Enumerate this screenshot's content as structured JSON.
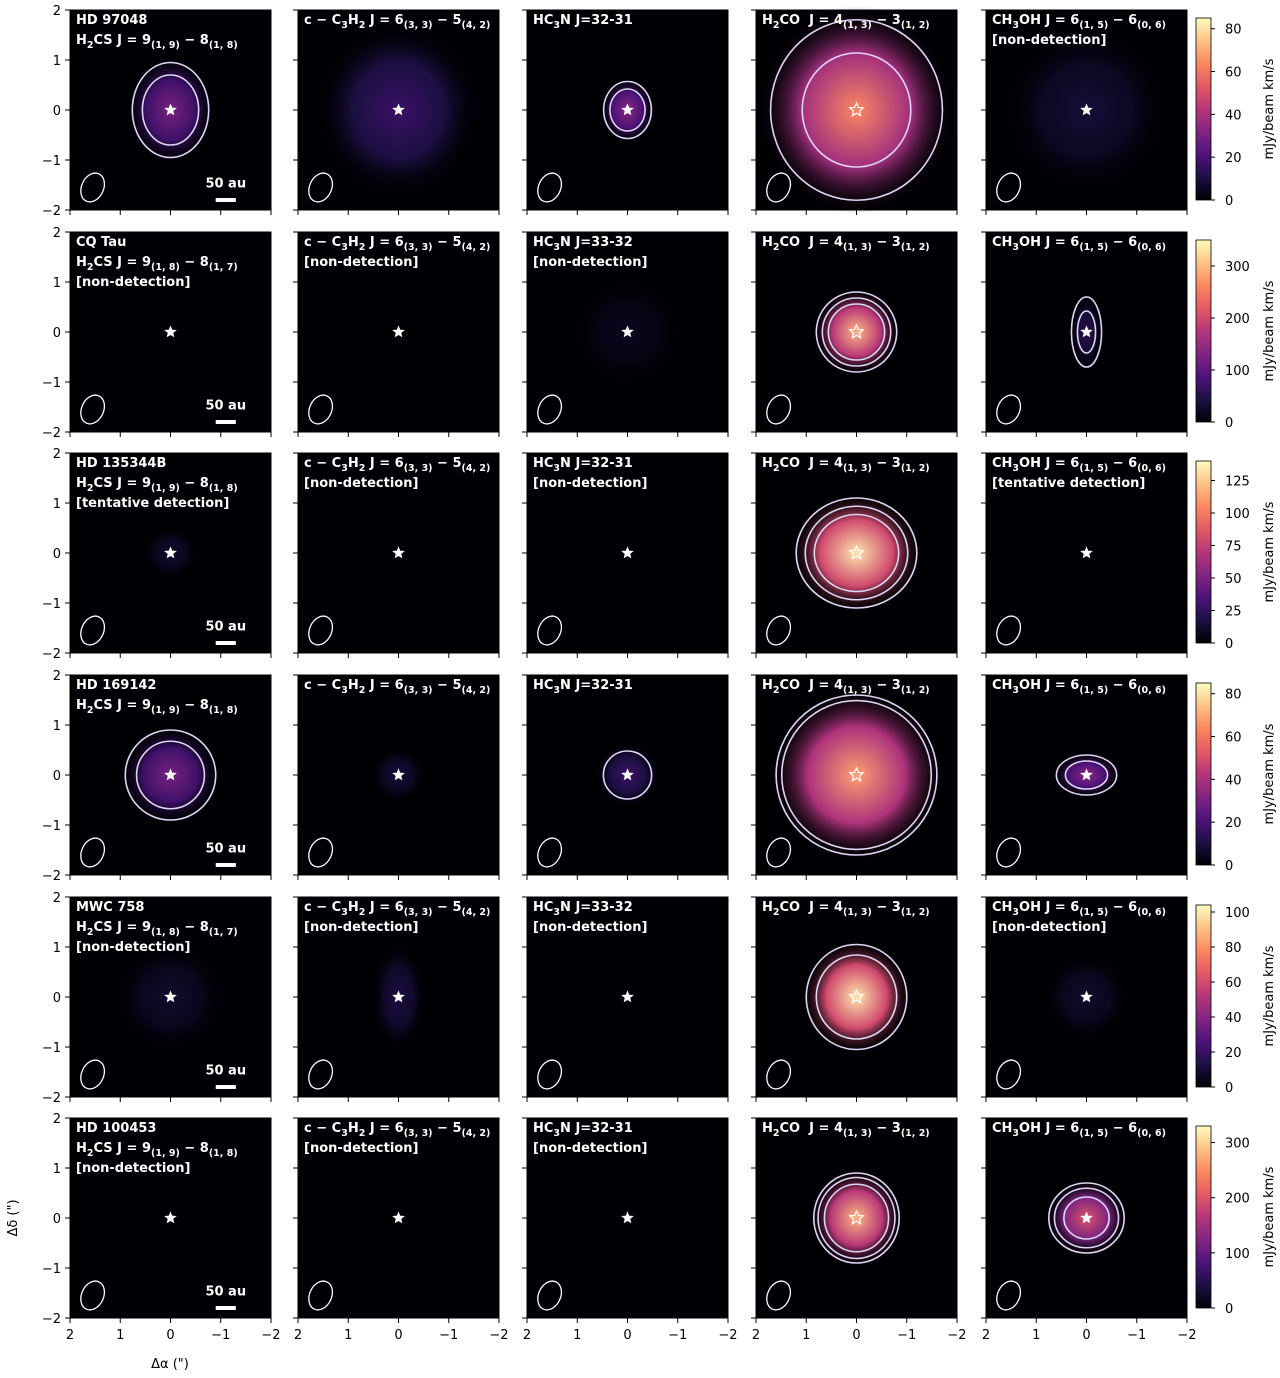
{
  "xlabel": "Δα (\")",
  "ylabel": "Δδ (\")",
  "xlim": [
    2,
    -2
  ],
  "ylim": [
    -2,
    2
  ],
  "xticks": [
    2,
    1,
    0,
    {
      "value": -1,
      "label": "−1"
    },
    {
      "value": -2,
      "label": "−2"
    }
  ],
  "yticks": [
    {
      "value": -2,
      "label": "−2"
    },
    {
      "value": -1,
      "label": "−1"
    },
    0,
    1,
    2
  ],
  "scalebar": "50 au",
  "colorbar_label": "mJy/beam km/s",
  "rows": [
    {
      "source": "HD 97048",
      "colorbar": {
        "lim": [
          0,
          85
        ],
        "ticks": [
          0,
          20,
          40,
          60,
          80
        ]
      },
      "panels": [
        {
          "label": [
            "H",
            "2",
            "CS J = 9",
            "(1, 9)",
            " − 8",
            "(1, 8)"
          ]
        },
        {
          "label": [
            "c − C",
            "3",
            "H",
            "2",
            " J = 6",
            "(3, 3)",
            " − 5",
            "(4, 2)"
          ]
        },
        {
          "label": [
            "HC",
            "3",
            "N J=32-31"
          ]
        },
        {
          "label": [
            "H",
            "2",
            "CO  J = 4",
            "(1, 3)",
            " − 3",
            "(1, 2)"
          ]
        },
        {
          "label": [
            "CH",
            "3",
            "OH J = 6",
            "(1, 5)",
            " − 6",
            "(0, 6)"
          ],
          "status": "[non-detection]"
        }
      ]
    },
    {
      "source": "CQ Tau",
      "colorbar": {
        "lim": [
          0,
          350
        ],
        "ticks": [
          0,
          100,
          200,
          300
        ]
      },
      "panels": [
        {
          "label": [
            "H",
            "2",
            "CS J = 9",
            "(1, 8)",
            " − 8",
            "(1, 7)"
          ],
          "status": "[non-detection]"
        },
        {
          "label": [
            "c − C",
            "3",
            "H",
            "2",
            " J = 6",
            "(3, 3)",
            " − 5",
            "(4, 2)"
          ],
          "status": "[non-detection]"
        },
        {
          "label": [
            "HC",
            "3",
            "N J=33-32"
          ],
          "status": "[non-detection]"
        },
        {
          "label": [
            "H",
            "2",
            "CO  J = 4",
            "(1, 3)",
            " − 3",
            "(1, 2)"
          ]
        },
        {
          "label": [
            "CH",
            "3",
            "OH J = 6",
            "(1, 5)",
            " − 6",
            "(0, 6)"
          ]
        }
      ]
    },
    {
      "source": "HD 135344B",
      "colorbar": {
        "lim": [
          0,
          140
        ],
        "ticks": [
          0,
          25,
          50,
          75,
          100,
          125
        ]
      },
      "panels": [
        {
          "label": [
            "H",
            "2",
            "CS J = 9",
            "(1, 9)",
            " − 8",
            "(1, 8)"
          ],
          "status": "[tentative detection]"
        },
        {
          "label": [
            "c − C",
            "3",
            "H",
            "2",
            " J = 6",
            "(3, 3)",
            " − 5",
            "(4, 2)"
          ],
          "status": "[non-detection]"
        },
        {
          "label": [
            "HC",
            "3",
            "N J=32-31"
          ],
          "status": "[non-detection]"
        },
        {
          "label": [
            "H",
            "2",
            "CO  J = 4",
            "(1, 3)",
            " − 3",
            "(1, 2)"
          ]
        },
        {
          "label": [
            "CH",
            "3",
            "OH J = 6",
            "(1, 5)",
            " − 6",
            "(0, 6)"
          ],
          "status": "[tentative detection]"
        }
      ]
    },
    {
      "source": "HD 169142",
      "colorbar": {
        "lim": [
          0,
          85
        ],
        "ticks": [
          0,
          20,
          40,
          60,
          80
        ]
      },
      "panels": [
        {
          "label": [
            "H",
            "2",
            "CS J = 9",
            "(1, 9)",
            " − 8",
            "(1, 8)"
          ]
        },
        {
          "label": [
            "c − C",
            "3",
            "H",
            "2",
            " J = 6",
            "(3, 3)",
            " − 5",
            "(4, 2)"
          ]
        },
        {
          "label": [
            "HC",
            "3",
            "N J=32-31"
          ]
        },
        {
          "label": [
            "H",
            "2",
            "CO  J = 4",
            "(1, 3)",
            " − 3",
            "(1, 2)"
          ]
        },
        {
          "label": [
            "CH",
            "3",
            "OH J = 6",
            "(1, 5)",
            " − 6",
            "(0, 6)"
          ]
        }
      ]
    },
    {
      "source": "MWC 758",
      "colorbar": {
        "lim": [
          0,
          104
        ],
        "ticks": [
          0,
          20,
          40,
          60,
          80,
          100
        ]
      },
      "panels": [
        {
          "label": [
            "H",
            "2",
            "CS J = 9",
            "(1, 8)",
            " − 8",
            "(1, 7)"
          ],
          "status": "[non-detection]"
        },
        {
          "label": [
            "c − C",
            "3",
            "H",
            "2",
            " J = 6",
            "(3, 3)",
            " − 5",
            "(4, 2)"
          ],
          "status": "[non-detection]"
        },
        {
          "label": [
            "HC",
            "3",
            "N J=33-32"
          ],
          "status": "[non-detection]"
        },
        {
          "label": [
            "H",
            "2",
            "CO  J = 4",
            "(1, 3)",
            " − 3",
            "(1, 2)"
          ]
        },
        {
          "label": [
            "CH",
            "3",
            "OH J = 6",
            "(1, 5)",
            " − 6",
            "(0, 6)"
          ],
          "status": "[non-detection]"
        }
      ]
    },
    {
      "source": "HD 100453",
      "colorbar": {
        "lim": [
          0,
          330
        ],
        "ticks": [
          0,
          100,
          200,
          300
        ]
      },
      "panels": [
        {
          "label": [
            "H",
            "2",
            "CS J = 9",
            "(1, 9)",
            " − 8",
            "(1, 8)"
          ],
          "status": "[non-detection]"
        },
        {
          "label": [
            "c − C",
            "3",
            "H",
            "2",
            " J = 6",
            "(3, 3)",
            " − 5",
            "(4, 2)"
          ],
          "status": "[non-detection]"
        },
        {
          "label": [
            "HC",
            "3",
            "N J=32-31"
          ],
          "status": "[non-detection]"
        },
        {
          "label": [
            "H",
            "2",
            "CO  J = 4",
            "(1, 3)",
            " − 3",
            "(1, 2)"
          ]
        },
        {
          "label": [
            "CH",
            "3",
            "OH J = 6",
            "(1, 5)",
            " − 6",
            "(0, 6)"
          ]
        }
      ]
    }
  ]
}
